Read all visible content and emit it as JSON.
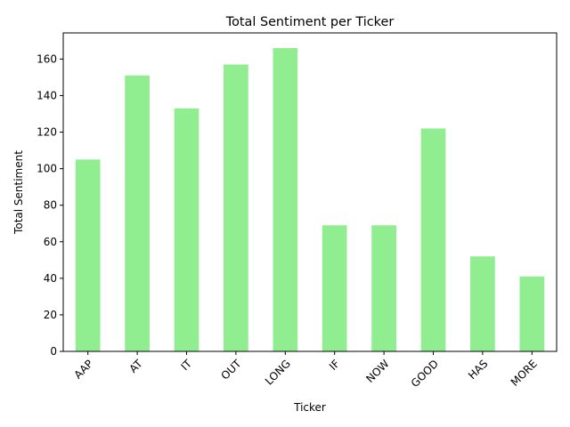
{
  "chart_data": {
    "type": "bar",
    "title": "Total Sentiment per Ticker",
    "xlabel": "Ticker",
    "ylabel": "Total Sentiment",
    "categories": [
      "AAP",
      "AT",
      "IT",
      "OUT",
      "LONG",
      "IF",
      "NOW",
      "GOOD",
      "HAS",
      "MORE"
    ],
    "values": [
      105,
      151,
      133,
      157,
      166,
      69,
      69,
      122,
      52,
      41
    ],
    "ylim": [
      0,
      174.3
    ],
    "yticks": [
      0,
      20,
      40,
      60,
      80,
      100,
      120,
      140,
      160
    ],
    "bar_color": "#90ee90",
    "grid": false,
    "legend": false,
    "xtick_rotation": 45
  }
}
